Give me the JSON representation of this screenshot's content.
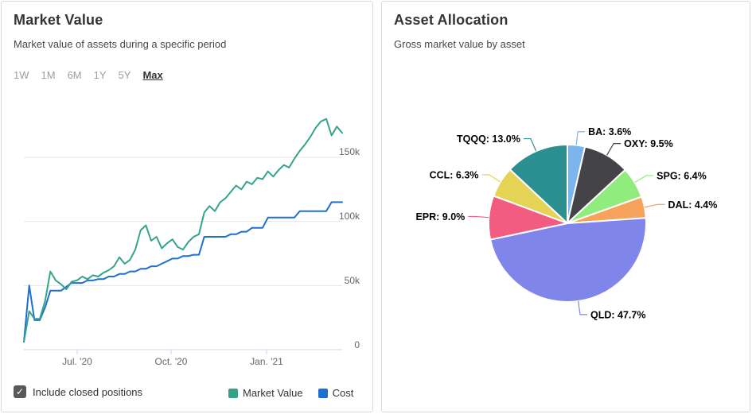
{
  "left_panel": {
    "range_buttons": [
      {
        "label": "1W",
        "active": false
      },
      {
        "label": "1M",
        "active": false
      },
      {
        "label": "6M",
        "active": false
      },
      {
        "label": "1Y",
        "active": false
      },
      {
        "label": "5Y",
        "active": false
      },
      {
        "label": "Max",
        "active": true
      }
    ],
    "checkbox": {
      "label": "Include closed positions",
      "checked": true
    }
  },
  "right_panel": {},
  "icons": {
    "checkmark": "✓"
  },
  "theme": {
    "card_border": "#d9d9d9",
    "grid_color": "#e6e6e6",
    "axis_color": "#ccd6eb",
    "axis_text_color": "#666666",
    "checkbox_color": "#595959"
  },
  "chart_data": [
    {
      "type": "line",
      "title": "Market Value",
      "subtitle": "Market value of assets during a specific period",
      "x_ticks": [
        "Jul. '20",
        "Oct. '20",
        "Jan. '21"
      ],
      "y_ticks": [
        "0",
        "50k",
        "100k",
        "150k"
      ],
      "y_tick_values": [
        0,
        50,
        100,
        150
      ],
      "ylim": [
        0,
        185
      ],
      "unit": "thousand USD",
      "grid": true,
      "legend_position": "bottom-right",
      "series": [
        {
          "name": "Market Value",
          "color": "#35A38C",
          "values": [
            6,
            30,
            24,
            24,
            38,
            61,
            54,
            51,
            47,
            53,
            54,
            57,
            55,
            58,
            57,
            60,
            62,
            65,
            72,
            67,
            70,
            78,
            93,
            97,
            85,
            88,
            79,
            83,
            86,
            80,
            78,
            84,
            88,
            90,
            107,
            112,
            108,
            115,
            118,
            123,
            128,
            125,
            131,
            129,
            134,
            133,
            139,
            135,
            140,
            144,
            142,
            149,
            155,
            160,
            166,
            173,
            178,
            180,
            167,
            174,
            169
          ]
        },
        {
          "name": "Cost",
          "color": "#1F6FD0",
          "values": [
            6,
            50,
            23,
            23,
            33,
            46,
            46,
            46,
            49,
            52,
            52,
            52,
            54,
            54,
            55,
            55,
            57,
            57,
            59,
            59,
            61,
            61,
            63,
            63,
            65,
            65,
            67,
            69,
            71,
            71,
            73,
            73,
            74,
            74,
            88,
            88,
            88,
            88,
            88,
            90,
            90,
            92,
            92,
            95,
            95,
            95,
            103,
            103,
            103,
            103,
            103,
            103,
            108,
            108,
            108,
            108,
            108,
            108,
            115,
            115,
            115
          ]
        }
      ]
    },
    {
      "type": "pie",
      "title": "Asset Allocation",
      "subtitle": "Gross market value by asset",
      "label_format": "{name}: {pct}%",
      "slices": [
        {
          "name": "BA",
          "pct": 3.6,
          "color": "#7CB5EC"
        },
        {
          "name": "OXY",
          "pct": 9.5,
          "color": "#434348"
        },
        {
          "name": "SPG",
          "pct": 6.4,
          "color": "#90ED7D"
        },
        {
          "name": "DAL",
          "pct": 4.4,
          "color": "#F7A35C"
        },
        {
          "name": "QLD",
          "pct": 47.7,
          "color": "#8085E9"
        },
        {
          "name": "EPR",
          "pct": 9.0,
          "color": "#F15C80"
        },
        {
          "name": "CCL",
          "pct": 6.3,
          "color": "#E4D354"
        },
        {
          "name": "TQQQ",
          "pct": 13.0,
          "color": "#2B908F"
        }
      ]
    }
  ]
}
